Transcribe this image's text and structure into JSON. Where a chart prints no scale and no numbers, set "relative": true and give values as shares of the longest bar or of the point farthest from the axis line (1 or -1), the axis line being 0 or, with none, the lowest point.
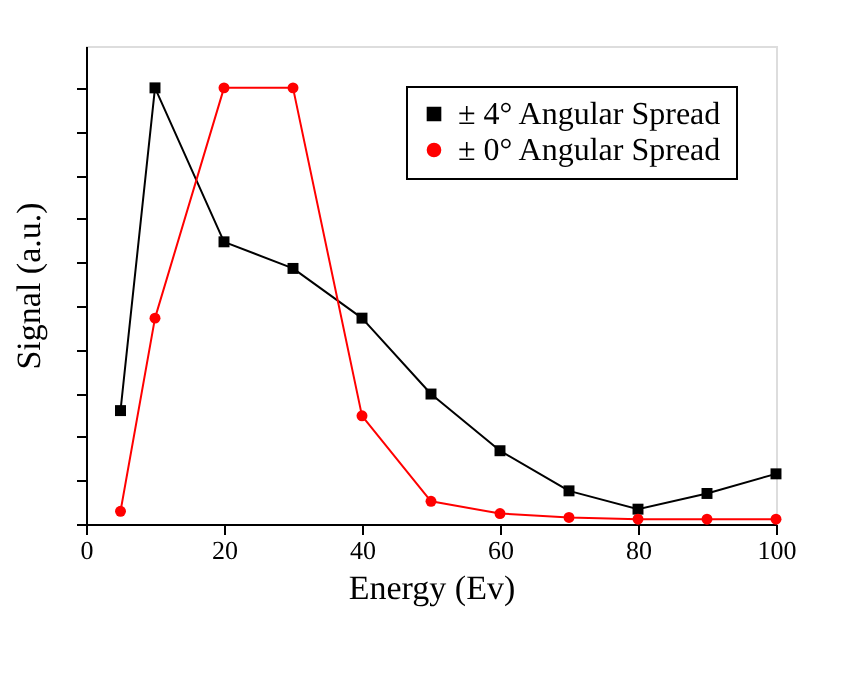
{
  "chart_data": {
    "type": "line",
    "xlabel": "Energy (Ev)",
    "ylabel": "Signal (a.u.)",
    "relative": true,
    "xlim": [
      0,
      100
    ],
    "xticks": [
      0,
      20,
      40,
      60,
      80,
      100
    ],
    "grid": false,
    "legend": "top right",
    "line_style": "solid",
    "series": [
      {
        "name": "± 4° Angular Spread",
        "color": "#000000",
        "marker": "square",
        "x": [
          5,
          10,
          20,
          30,
          40,
          50,
          60,
          70,
          80,
          90,
          100
        ],
        "values": [
          0.26,
          1,
          0.647,
          0.586,
          0.472,
          0.298,
          0.168,
          0.076,
          0.034,
          0.07,
          0.115
        ]
      },
      {
        "name": "± 0° Angular Spread",
        "color": "#ff0000",
        "marker": "circle",
        "x": [
          5,
          10,
          20,
          30,
          40,
          50,
          60,
          70,
          80,
          90,
          100
        ],
        "values": [
          0.029,
          0.472,
          1,
          1,
          0.248,
          0.052,
          0.024,
          0.015,
          0.011,
          0.011,
          0.011
        ]
      }
    ]
  }
}
